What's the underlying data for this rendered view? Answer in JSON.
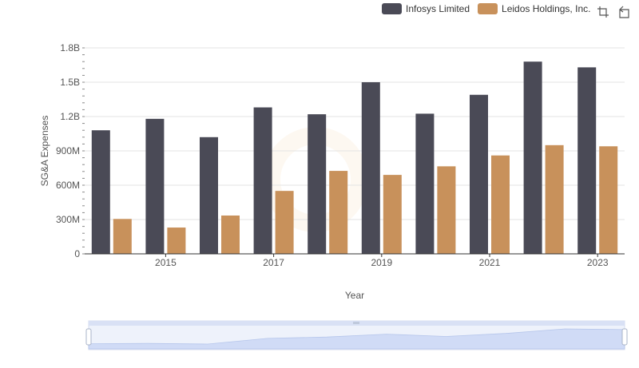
{
  "legend": {
    "items": [
      {
        "label": "Infosys Limited",
        "color": "#4a4a56"
      },
      {
        "label": "Leidos Holdings, Inc.",
        "color": "#c8915b"
      }
    ]
  },
  "toolbox": {
    "icons": [
      "zoom-icon",
      "restore-icon"
    ]
  },
  "chart_data": {
    "type": "bar",
    "title": "",
    "xlabel": "Year",
    "ylabel": "SG&A Expenses",
    "categories": [
      "2014",
      "2015",
      "2016",
      "2017",
      "2018",
      "2019",
      "2020",
      "2021",
      "2022",
      "2023"
    ],
    "x_tick_labels": [
      "2015",
      "2017",
      "2019",
      "2021",
      "2023"
    ],
    "y_tick_labels": [
      "0",
      "300M",
      "600M",
      "900M",
      "1.2B",
      "1.5B",
      "1.8B"
    ],
    "ylim": [
      0,
      1800000000
    ],
    "grid": true,
    "legend_position": "top-right",
    "series": [
      {
        "name": "Infosys Limited",
        "color": "#4a4a56",
        "values": [
          1080000000,
          1180000000,
          1020000000,
          1280000000,
          1220000000,
          1500000000,
          1225000000,
          1390000000,
          1680000000,
          1630000000
        ]
      },
      {
        "name": "Leidos Holdings, Inc.",
        "color": "#c8915b",
        "values": [
          305000000,
          230000000,
          335000000,
          550000000,
          725000000,
          690000000,
          765000000,
          860000000,
          950000000,
          940000000
        ]
      }
    ]
  },
  "data_zoom": {
    "start_percent": 0,
    "end_percent": 100
  }
}
